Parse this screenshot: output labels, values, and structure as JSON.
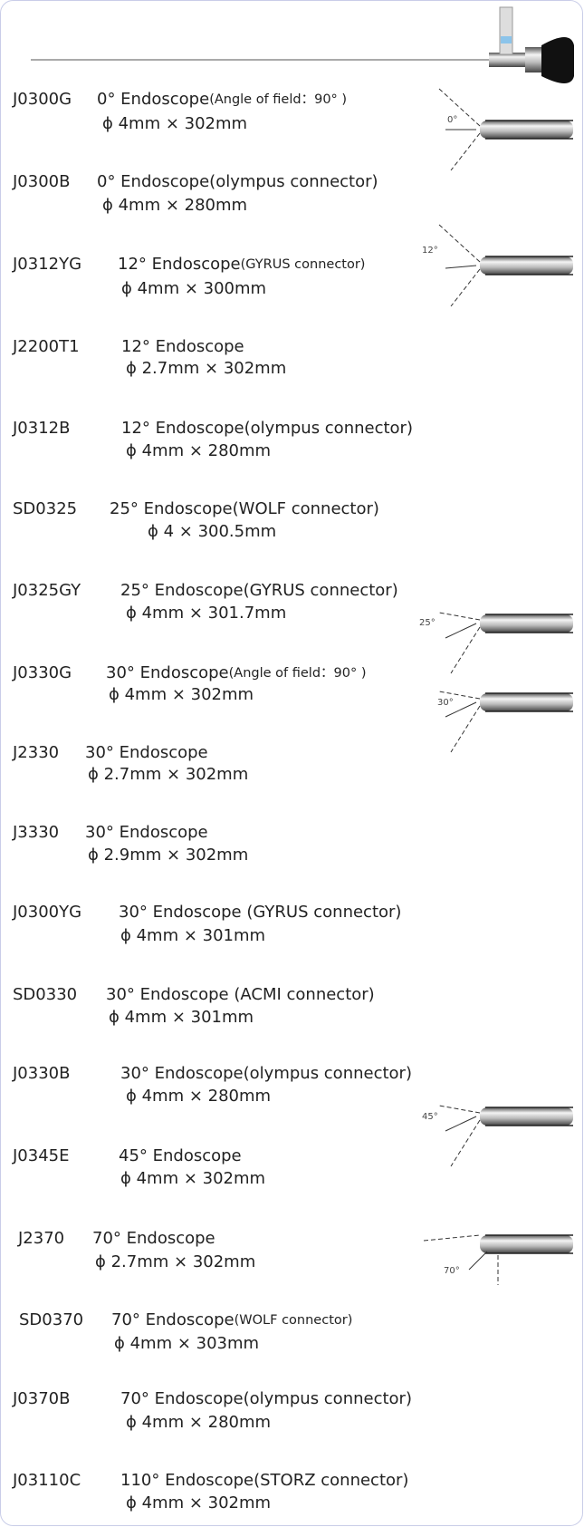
{
  "items": [
    {
      "code": "J0300G",
      "desc": "0° Endoscope",
      "note": "(Angle of field：90° )",
      "size": "ϕ 4mm × 302mm"
    },
    {
      "code": "J0300B",
      "desc": "0°  Endoscope(olympus connector)",
      "size": "ϕ 4mm × 280mm"
    },
    {
      "code": "J0312YG",
      "desc": "12° Endoscope",
      "note": "(GYRUS connector)",
      "size": "ϕ 4mm × 300mm"
    },
    {
      "code": "J2200T1",
      "desc": "12°  Endoscope",
      "size": "ϕ 2.7mm × 302mm"
    },
    {
      "code": "J0312B",
      "desc": "12°  Endoscope(olympus connector)",
      "size": "ϕ 4mm × 280mm"
    },
    {
      "code": "SD0325",
      "desc": "25°  Endoscope(WOLF connector)",
      "size": "ϕ 4 × 300.5mm"
    },
    {
      "code": "J0325GY",
      "desc": "25°  Endoscope(GYRUS connector)",
      "size": "ϕ 4mm × 301.7mm"
    },
    {
      "code": "J0330G",
      "desc": "30° Endoscope",
      "note": "(Angle of field：90° )",
      "size": "ϕ 4mm × 302mm"
    },
    {
      "code": "J2330",
      "desc": "30° Endoscope",
      "size": "ϕ 2.7mm × 302mm"
    },
    {
      "code": "J3330",
      "desc": "30° Endoscope",
      "size": "ϕ 2.9mm × 302mm"
    },
    {
      "code": "J0300YG",
      "desc": "30° Endoscope (GYRUS connector)",
      "size": "ϕ 4mm × 301mm"
    },
    {
      "code": "SD0330",
      "desc": "30° Endoscope (ACMI connector)",
      "size": "ϕ 4mm × 301mm"
    },
    {
      "code": "J0330B",
      "desc": "30°  Endoscope(olympus  connector)",
      "size": "ϕ 4mm × 280mm"
    },
    {
      "code": "J0345E",
      "desc": "45° Endoscope",
      "size": "ϕ 4mm × 302mm"
    },
    {
      "code": "J2370",
      "desc": "70° Endoscope",
      "size": "ϕ 2.7mm × 302mm"
    },
    {
      "code": "SD0370",
      "desc": "70° Endoscope",
      "note": "(WOLF connector)",
      "size": "ϕ 4mm × 303mm"
    },
    {
      "code": "J0370B",
      "desc": "70°  Endoscope(olympus  connector)",
      "size": "ϕ 4mm × 280mm"
    },
    {
      "code": "J03110C",
      "desc": "110°  Endoscope(STORZ  connector)",
      "size": "ϕ 4mm × 302mm"
    }
  ],
  "diagrams": [
    {
      "label": "0°"
    },
    {
      "label": "12°"
    },
    {
      "label": "25°"
    },
    {
      "label": "30°"
    },
    {
      "label": "45°"
    },
    {
      "label": "70°"
    }
  ]
}
